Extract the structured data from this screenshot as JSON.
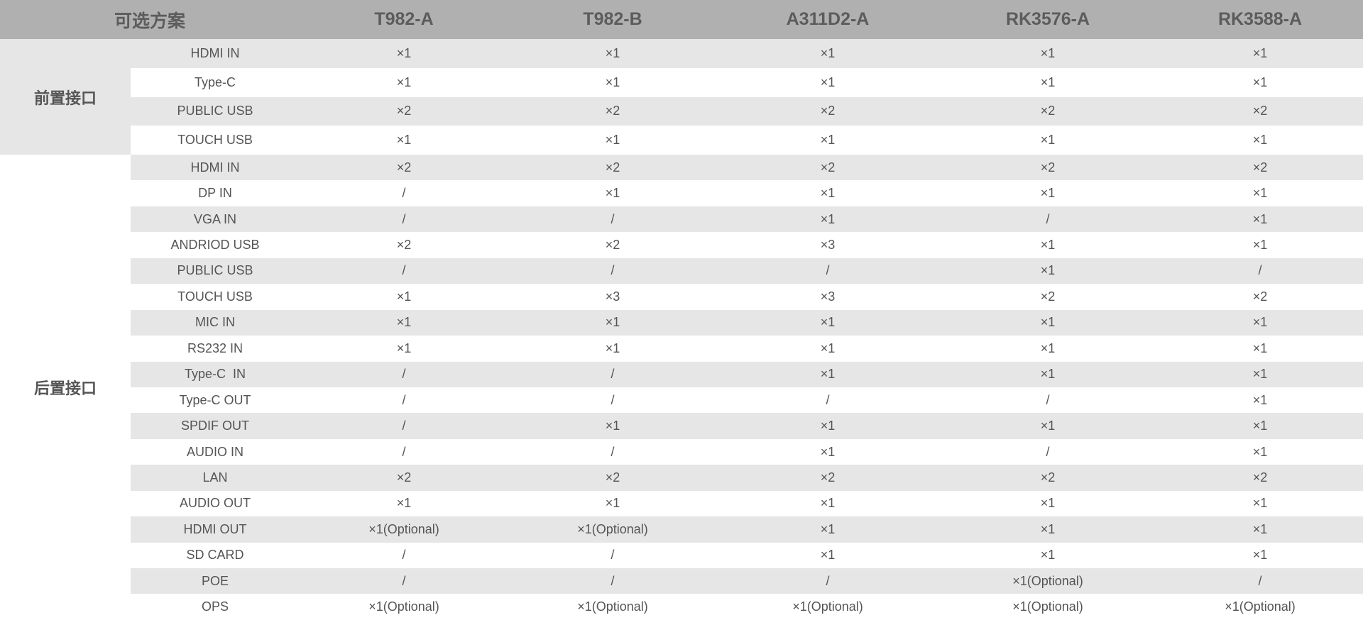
{
  "header": {
    "title": "可选方案",
    "models": [
      "T982-A",
      "T982-B",
      "A311D2-A",
      "RK3576-A",
      "RK3588-A"
    ]
  },
  "colors": {
    "header_bg": "#b0b0b0",
    "stripe": "#e6e6e6",
    "text": "#555555"
  },
  "groups": [
    {
      "name": "前置接口",
      "rows": [
        {
          "label": "HDMI IN",
          "values": [
            "×1",
            "×1",
            "×1",
            "×1",
            "×1"
          ]
        },
        {
          "label": "Type-C",
          "values": [
            "×1",
            "×1",
            "×1",
            "×1",
            "×1"
          ]
        },
        {
          "label": "PUBLIC USB",
          "values": [
            "×2",
            "×2",
            "×2",
            "×2",
            "×2"
          ]
        },
        {
          "label": "TOUCH USB",
          "values": [
            "×1",
            "×1",
            "×1",
            "×1",
            "×1"
          ]
        }
      ]
    },
    {
      "name": "后置接口",
      "rows": [
        {
          "label": "HDMI IN",
          "values": [
            "×2",
            "×2",
            "×2",
            "×2",
            "×2"
          ]
        },
        {
          "label": "DP IN",
          "values": [
            "/",
            "×1",
            "×1",
            "×1",
            "×1"
          ]
        },
        {
          "label": "VGA IN",
          "values": [
            "/",
            "/",
            "×1",
            "/",
            "×1"
          ]
        },
        {
          "label": "ANDRIOD USB",
          "values": [
            "×2",
            "×2",
            "×3",
            "×1",
            "×1"
          ]
        },
        {
          "label": "PUBLIC USB",
          "values": [
            "/",
            "/",
            "/",
            "×1",
            "/"
          ]
        },
        {
          "label": "TOUCH USB",
          "values": [
            "×1",
            "×3",
            "×3",
            "×2",
            "×2"
          ]
        },
        {
          "label": "MIC IN",
          "values": [
            "×1",
            "×1",
            "×1",
            "×1",
            "×1"
          ]
        },
        {
          "label": "RS232 IN",
          "values": [
            "×1",
            "×1",
            "×1",
            "×1",
            "×1"
          ]
        },
        {
          "label": "Type-C  IN",
          "values": [
            "/",
            "/",
            "×1",
            "×1",
            "×1"
          ]
        },
        {
          "label": "Type-C OUT",
          "values": [
            "/",
            "/",
            "/",
            "/",
            "×1"
          ]
        },
        {
          "label": "SPDIF OUT",
          "values": [
            "/",
            "×1",
            "×1",
            "×1",
            "×1"
          ]
        },
        {
          "label": "AUDIO IN",
          "values": [
            "/",
            "/",
            "×1",
            "/",
            "×1"
          ]
        },
        {
          "label": "LAN",
          "values": [
            "×2",
            "×2",
            "×2",
            "×2",
            "×2"
          ]
        },
        {
          "label": "AUDIO OUT",
          "values": [
            "×1",
            "×1",
            "×1",
            "×1",
            "×1"
          ]
        },
        {
          "label": "HDMI OUT",
          "values": [
            "×1(Optional)",
            "×1(Optional)",
            "×1",
            "×1",
            "×1"
          ]
        },
        {
          "label": "SD CARD",
          "values": [
            "/",
            "/",
            "×1",
            "×1",
            "×1"
          ]
        },
        {
          "label": "POE",
          "values": [
            "/",
            "/",
            "/",
            "×1(Optional)",
            "/"
          ]
        },
        {
          "label": "OPS",
          "values": [
            "×1(Optional)",
            "×1(Optional)",
            "×1(Optional)",
            "×1(Optional)",
            "×1(Optional)"
          ]
        }
      ]
    }
  ]
}
